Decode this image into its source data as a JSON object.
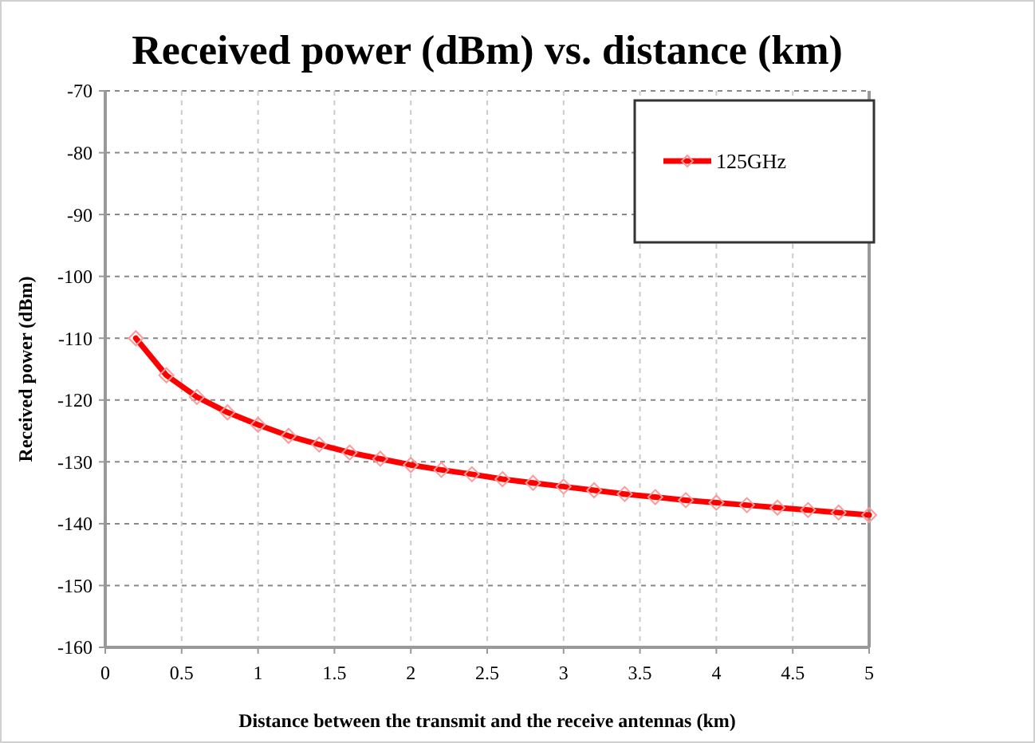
{
  "chart_data": {
    "type": "line",
    "title": "Received power (dBm) vs. distance (km)",
    "xlabel": "Distance between the transmit and the receive antennas (km)",
    "ylabel": "Received power (dBm)",
    "x": [
      0.2,
      0.4,
      0.6,
      0.8,
      1.0,
      1.2,
      1.4,
      1.6,
      1.8,
      2.0,
      2.2,
      2.4,
      2.6,
      2.8,
      3.0,
      3.2,
      3.4,
      3.6,
      3.8,
      4.0,
      4.2,
      4.4,
      4.6,
      4.8,
      5.0
    ],
    "series": [
      {
        "name": "125GHz",
        "color": "#ff0000",
        "values": [
          -110,
          -116,
          -119.5,
          -122,
          -124,
          -125.8,
          -127.2,
          -128.5,
          -129.5,
          -130.5,
          -131.3,
          -132,
          -132.8,
          -133.4,
          -134,
          -134.6,
          -135.2,
          -135.7,
          -136.2,
          -136.6,
          -137,
          -137.4,
          -137.8,
          -138.2,
          -138.6
        ]
      }
    ],
    "xlim": [
      0,
      5
    ],
    "xticks": [
      0,
      0.5,
      1,
      1.5,
      2,
      2.5,
      3,
      3.5,
      4,
      4.5,
      5
    ],
    "ylim": [
      -160,
      -70
    ],
    "yticks": [
      -160,
      -150,
      -140,
      -130,
      -120,
      -110,
      -100,
      -90,
      -80,
      -70
    ],
    "grid": true,
    "legend": "top right",
    "marker": "diamond",
    "line_style": "solid"
  }
}
